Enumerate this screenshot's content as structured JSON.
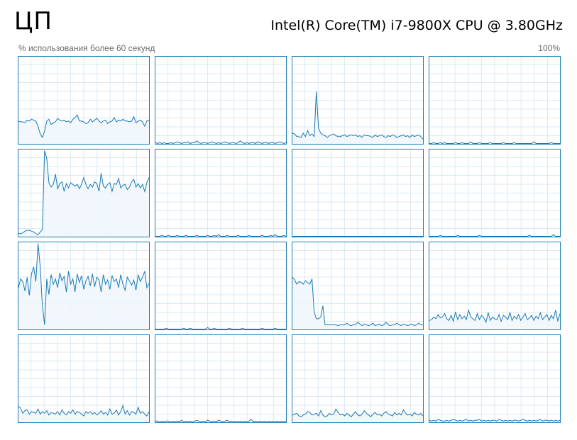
{
  "header": {
    "title": "ЦП",
    "cpu_name": "Intel(R) Core(TM) i7-9800X CPU @ 3.80GHz",
    "subtitle_left": "% использования более 60 секунд",
    "subtitle_right": "100%"
  },
  "colors": {
    "line": "#1a7ab5",
    "fill": "#f0f6fb",
    "grid": "#dbe9f3",
    "border": "#1a7ab5"
  },
  "chart_data": {
    "type": "area",
    "ylim": [
      0,
      100
    ],
    "xlim": [
      0,
      60
    ],
    "grid": true,
    "cores": [
      {
        "values": [
          26,
          25,
          25,
          24,
          27,
          26,
          28,
          27,
          26,
          20,
          11,
          7,
          14,
          26,
          28,
          22,
          24,
          25,
          29,
          27,
          26,
          27,
          25,
          26,
          24,
          28,
          30,
          33,
          26,
          26,
          25,
          23,
          24,
          28,
          25,
          27,
          29,
          26,
          24,
          26,
          27,
          23,
          25,
          26,
          30,
          25,
          27,
          26,
          28,
          26,
          26,
          25,
          26,
          31,
          24,
          26,
          27,
          25,
          20,
          26,
          27
        ]
      },
      {
        "values": [
          1,
          0,
          1,
          0,
          1,
          0,
          0,
          1,
          0,
          1,
          2,
          1,
          0,
          1,
          1,
          2,
          0,
          1,
          1,
          3,
          1,
          0,
          1,
          1,
          0,
          1,
          2,
          1,
          0,
          1,
          0,
          1,
          2,
          1,
          0,
          1,
          1,
          0,
          1,
          3,
          1,
          0,
          1,
          0,
          1,
          1,
          0,
          2,
          1,
          0,
          1,
          1,
          0,
          1,
          1,
          0,
          1,
          2,
          1,
          0,
          1
        ]
      },
      {
        "values": [
          12,
          11,
          8,
          8,
          7,
          12,
          8,
          15,
          9,
          11,
          8,
          60,
          18,
          12,
          10,
          9,
          7,
          9,
          10,
          11,
          9,
          8,
          8,
          9,
          10,
          8,
          9,
          10,
          9,
          10,
          8,
          9,
          7,
          10,
          9,
          9,
          8,
          7,
          10,
          8,
          9,
          10,
          8,
          7,
          9,
          8,
          10,
          9,
          7,
          8,
          9,
          10,
          8,
          9,
          7,
          10,
          8,
          9,
          10,
          8,
          5
        ]
      },
      {
        "values": [
          0,
          0,
          1,
          0,
          0,
          1,
          0,
          1,
          0,
          0,
          0,
          0,
          1,
          0,
          0,
          1,
          0,
          0,
          0,
          2,
          0,
          0,
          0,
          1,
          0,
          0,
          0,
          0,
          1,
          0,
          0,
          0,
          0,
          0,
          1,
          0,
          0,
          0,
          0,
          1,
          0,
          0,
          0,
          0,
          0,
          0,
          0,
          0,
          2,
          0,
          0,
          0,
          0,
          0,
          0,
          0,
          1,
          0,
          0,
          0,
          0
        ]
      },
      {
        "values": [
          3,
          3,
          4,
          6,
          7,
          7,
          6,
          5,
          3,
          2,
          5,
          8,
          99,
          90,
          62,
          57,
          60,
          72,
          55,
          61,
          63,
          52,
          61,
          56,
          62,
          60,
          58,
          60,
          55,
          60,
          68,
          60,
          55,
          60,
          57,
          63,
          61,
          52,
          73,
          58,
          56,
          60,
          62,
          52,
          61,
          60,
          67,
          56,
          59,
          60,
          54,
          57,
          63,
          66,
          57,
          61,
          56,
          60,
          52,
          62,
          68
        ]
      },
      {
        "values": [
          0,
          0,
          0,
          1,
          0,
          0,
          1,
          0,
          0,
          0,
          1,
          0,
          0,
          0,
          1,
          0,
          0,
          0,
          0,
          1,
          0,
          0,
          0,
          0,
          1,
          0,
          0,
          1,
          0,
          2,
          0,
          0,
          0,
          1,
          0,
          0,
          0,
          0,
          1,
          0,
          0,
          0,
          0,
          1,
          0,
          0,
          0,
          0,
          0,
          1,
          0,
          0,
          0,
          1,
          0,
          2,
          0,
          0,
          0,
          1,
          0
        ]
      },
      {
        "values": [
          0,
          0,
          0,
          0,
          0,
          0,
          0,
          0,
          0,
          0,
          0,
          0,
          0,
          0,
          0,
          0,
          0,
          0,
          0,
          0,
          0,
          0,
          0,
          0,
          0,
          0,
          0,
          0,
          0,
          0,
          0,
          0,
          0,
          0,
          0,
          0,
          0,
          0,
          0,
          0,
          0,
          0,
          0,
          0,
          0,
          0,
          0,
          0,
          0,
          0,
          0,
          0,
          0,
          0,
          0,
          0,
          0,
          0,
          0,
          0,
          0
        ]
      },
      {
        "values": [
          0,
          0,
          0,
          0,
          0,
          1,
          0,
          0,
          0,
          0,
          0,
          0,
          0,
          1,
          0,
          0,
          0,
          0,
          0,
          0,
          0,
          0,
          0,
          1,
          0,
          0,
          0,
          0,
          0,
          0,
          0,
          0,
          0,
          0,
          0,
          0,
          0,
          0,
          0,
          0,
          0,
          0,
          0,
          0,
          0,
          0,
          1,
          0,
          0,
          0,
          0,
          0,
          0,
          0,
          0,
          0,
          0,
          2,
          0,
          0,
          0
        ]
      },
      {
        "values": [
          48,
          58,
          55,
          44,
          60,
          39,
          64,
          72,
          55,
          99,
          72,
          27,
          5,
          58,
          40,
          63,
          52,
          58,
          48,
          65,
          56,
          61,
          43,
          67,
          52,
          58,
          43,
          64,
          54,
          62,
          46,
          56,
          61,
          50,
          64,
          49,
          60,
          57,
          43,
          63,
          52,
          57,
          46,
          62,
          55,
          58,
          48,
          63,
          52,
          45,
          60,
          56,
          51,
          57,
          45,
          63,
          55,
          60,
          67,
          48,
          53
        ]
      },
      {
        "values": [
          0,
          0,
          0,
          0,
          0,
          1,
          0,
          0,
          0,
          0,
          0,
          0,
          0,
          1,
          0,
          0,
          1,
          0,
          0,
          0,
          0,
          0,
          0,
          0,
          2,
          0,
          0,
          1,
          0,
          0,
          0,
          0,
          0,
          0,
          1,
          0,
          0,
          0,
          0,
          0,
          1,
          0,
          0,
          0,
          0,
          0,
          0,
          0,
          0,
          1,
          0,
          0,
          0,
          0,
          0,
          1,
          0,
          0,
          0,
          0,
          0
        ]
      },
      {
        "values": [
          60,
          57,
          52,
          55,
          54,
          52,
          56,
          54,
          52,
          58,
          20,
          12,
          12,
          14,
          27,
          5,
          5,
          5,
          5,
          5,
          5,
          4,
          5,
          5,
          5,
          7,
          5,
          4,
          5,
          5,
          8,
          6,
          4,
          6,
          5,
          4,
          5,
          7,
          4,
          5,
          6,
          4,
          5,
          8,
          5,
          4,
          5,
          5,
          7,
          5,
          4,
          6,
          5,
          4,
          5,
          6,
          4,
          5,
          7,
          5,
          5
        ]
      },
      {
        "values": [
          10,
          11,
          14,
          12,
          17,
          13,
          14,
          18,
          12,
          10,
          16,
          9,
          20,
          11,
          17,
          12,
          15,
          11,
          22,
          14,
          12,
          10,
          18,
          11,
          16,
          13,
          8,
          19,
          10,
          14,
          12,
          11,
          17,
          9,
          16,
          14,
          11,
          19,
          10,
          15,
          12,
          17,
          10,
          14,
          18,
          11,
          13,
          16,
          10,
          15,
          12,
          19,
          11,
          14,
          17,
          10,
          16,
          12,
          22,
          9,
          18
        ]
      },
      {
        "values": [
          18,
          16,
          10,
          13,
          14,
          9,
          12,
          11,
          10,
          15,
          9,
          12,
          10,
          13,
          8,
          11,
          10,
          9,
          12,
          8,
          14,
          10,
          8,
          12,
          10,
          14,
          9,
          12,
          11,
          9,
          7,
          12,
          10,
          12,
          9,
          11,
          8,
          10,
          13,
          9,
          11,
          8,
          15,
          9,
          10,
          14,
          8,
          12,
          19,
          9,
          13,
          8,
          12,
          11,
          9,
          17,
          10,
          12,
          9,
          7,
          12
        ]
      },
      {
        "values": [
          1,
          1,
          0,
          1,
          0,
          1,
          1,
          0,
          1,
          0,
          1,
          0,
          2,
          0,
          1,
          0,
          1,
          0,
          1,
          2,
          1,
          0,
          1,
          0,
          2,
          1,
          0,
          1,
          0,
          2,
          1,
          0,
          1,
          2,
          0,
          1,
          0,
          1,
          0,
          1,
          0,
          1,
          0,
          1,
          3,
          0,
          1,
          0,
          1,
          0,
          1,
          0,
          1,
          0,
          1,
          0,
          1,
          0,
          1,
          0,
          1
        ]
      },
      {
        "values": [
          8,
          9,
          10,
          7,
          6,
          8,
          9,
          12,
          11,
          8,
          9,
          10,
          7,
          13,
          8,
          6,
          7,
          10,
          8,
          9,
          15,
          11,
          8,
          9,
          7,
          10,
          8,
          6,
          9,
          12,
          8,
          7,
          9,
          13,
          10,
          8,
          6,
          9,
          11,
          8,
          9,
          7,
          10,
          12,
          9,
          8,
          7,
          11,
          8,
          10,
          8,
          14,
          10,
          8,
          9,
          7,
          11,
          9,
          8,
          10,
          7
        ]
      },
      {
        "values": [
          2,
          1,
          2,
          1,
          3,
          2,
          1,
          1,
          2,
          1,
          2,
          3,
          2,
          1,
          2,
          1,
          2,
          3,
          1,
          2,
          1,
          2,
          2,
          3,
          1,
          2,
          1,
          2,
          1,
          2,
          2,
          1,
          3,
          2,
          1,
          2,
          1,
          2,
          1,
          2,
          2,
          1,
          2,
          3,
          2,
          1,
          2,
          1,
          2,
          1,
          2,
          3,
          1,
          2,
          2,
          1,
          2,
          1,
          2,
          1,
          2
        ]
      }
    ]
  }
}
